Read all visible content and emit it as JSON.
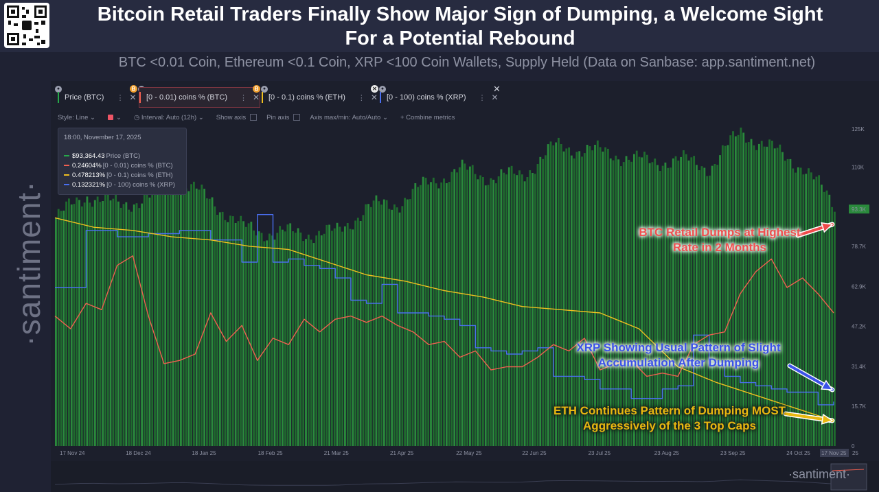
{
  "header": {
    "title": "Bitcoin Retail Traders Finally Show Major Sign of Dumping, a Welcome Sight For a Potential Rebound",
    "subtitle": "BTC <0.01 Coin, Ethereum <0.1 Coin, XRP <100 Coin Wallets, Supply Held (Data on Sanbase: app.santiment.net)"
  },
  "watermark": "·santiment·",
  "footer_logo": "·santiment·",
  "metrics": [
    {
      "label": "Price (BTC)",
      "color": "#26a84a"
    },
    {
      "label": "[0 - 0.01) coins % (BTC)",
      "color": "#f06050"
    },
    {
      "label": "[0 - 0.1) coins % (ETH)",
      "color": "#f0c020"
    },
    {
      "label": "[0 - 100) coins % (XRP)",
      "color": "#4a6ff0"
    }
  ],
  "toolbar": {
    "style": "Style: Line",
    "interval": "Interval: Auto (12h)",
    "show_axis": "Show axis",
    "pin_axis": "Pin axis",
    "axis_maxmin": "Axis max/min: Auto/Auto",
    "combine": "+ Combine metrics"
  },
  "tooltip": {
    "time": "18:00, November 17, 2025",
    "rows": [
      {
        "value": "$93,364.43",
        "name": "Price (BTC)",
        "color": "#26a84a"
      },
      {
        "value": "0.24604%",
        "name": "[0 - 0.01) coins % (BTC)",
        "color": "#f06050"
      },
      {
        "value": "0.478213%",
        "name": "[0 - 0.1) coins % (ETH)",
        "color": "#f0c020"
      },
      {
        "value": "0.132321%",
        "name": "[0 - 100) coins % (XRP)",
        "color": "#4a6ff0"
      }
    ]
  },
  "annotations": {
    "btc": "BTC Retail Dumps at Highest Rate in 2 Months",
    "xrp": "XRP Showing Usual Pattern of Slight Accumulation After Dumping",
    "eth": "ETH Continues Pattern of Dumping MOST Aggressively of the 3 Top Caps"
  },
  "colors": {
    "btc": "#f06050",
    "eth": "#f0c020",
    "xrp": "#4a6ff0",
    "price": "#1f6e2c",
    "bg": "#1c1f2c"
  },
  "chart_data": {
    "type": "area",
    "x_ticks": [
      "17 Nov 24",
      "18 Dec 24",
      "18 Jan 25",
      "18 Feb 25",
      "21 Mar 25",
      "21 Apr 25",
      "22 May 25",
      "22 Jun 25",
      "23 Jul 25",
      "23 Aug 25",
      "23 Sep 25",
      "24 Oct 25",
      "17 Nov 25",
      "25"
    ],
    "y_ticks": [
      "125K",
      "110K",
      "93.3K",
      "78.7K",
      "62.9K",
      "47.2K",
      "31.4K",
      "15.7K",
      "0"
    ],
    "ylim": [
      0,
      125000
    ],
    "price_current_label": "93.3K",
    "series": [
      {
        "name": "Price (BTC)",
        "kind": "area",
        "x": [
          0,
          4,
          8,
          12,
          16,
          20,
          24,
          28,
          32,
          36,
          40,
          44,
          48,
          52,
          56,
          60,
          64,
          68,
          72,
          76,
          80,
          84,
          88,
          92,
          96,
          100
        ],
        "values": [
          90000,
          99000,
          95000,
          98000,
          104000,
          97000,
          86000,
          84000,
          84000,
          84000,
          94000,
          96000,
          104000,
          109000,
          106000,
          107000,
          118000,
          117000,
          115000,
          112000,
          113000,
          110000,
          124000,
          117000,
          110000,
          95000
        ]
      },
      {
        "name": "[0 - 0.01) coins % (BTC)",
        "kind": "line",
        "unit": "relative",
        "x": [
          0,
          2,
          4,
          6,
          8,
          10,
          12,
          14,
          16,
          18,
          20,
          22,
          24,
          26,
          28,
          30,
          32,
          34,
          36,
          38,
          40,
          42,
          44,
          46,
          48,
          50,
          52,
          54,
          56,
          58,
          60,
          62,
          64,
          66,
          68,
          70,
          72,
          74,
          76,
          78,
          80,
          82,
          84,
          86,
          88,
          90,
          92,
          94,
          96,
          98,
          100
        ],
        "values": [
          41,
          37,
          45,
          43,
          57,
          60,
          41,
          26,
          27,
          29,
          42,
          33,
          38,
          27,
          34,
          32,
          40,
          36,
          40,
          41,
          39,
          41,
          38,
          36,
          32,
          33,
          28,
          30,
          24,
          25,
          25,
          28,
          32,
          30,
          34,
          24,
          26,
          27,
          22,
          23,
          22,
          32,
          35,
          36,
          48,
          55,
          59,
          50,
          53,
          48,
          42
        ]
      },
      {
        "name": "[0 - 0.1) coins % (ETH)",
        "kind": "line",
        "unit": "relative",
        "x": [
          0,
          5,
          10,
          15,
          20,
          25,
          30,
          35,
          40,
          45,
          50,
          55,
          60,
          65,
          70,
          75,
          80,
          85,
          90,
          95,
          100
        ],
        "values": [
          72,
          69,
          68,
          66,
          65,
          63,
          62,
          58,
          54,
          52,
          49,
          47,
          44,
          43,
          42,
          37,
          25,
          20,
          16,
          12,
          8
        ]
      },
      {
        "name": "[0 - 100) coins % (XRP)",
        "kind": "line",
        "unit": "relative",
        "x": [
          0,
          4,
          8,
          12,
          16,
          20,
          24,
          26,
          28,
          30,
          32,
          34,
          36,
          38,
          40,
          42,
          44,
          46,
          48,
          50,
          52,
          54,
          56,
          58,
          60,
          62,
          64,
          66,
          68,
          70,
          72,
          74,
          76,
          78,
          80,
          82,
          84,
          86,
          88,
          90,
          92,
          94,
          96,
          98,
          100
        ],
        "values": [
          50,
          68,
          66,
          67,
          68,
          65,
          58,
          73,
          58,
          59,
          57,
          56,
          53,
          46,
          45,
          51,
          42,
          42,
          41,
          40,
          38,
          31,
          30,
          29,
          30,
          31,
          22,
          22,
          21,
          18,
          18,
          15,
          15,
          18,
          19,
          35,
          26,
          22,
          20,
          19,
          18,
          17,
          17,
          13,
          14
        ]
      }
    ]
  }
}
